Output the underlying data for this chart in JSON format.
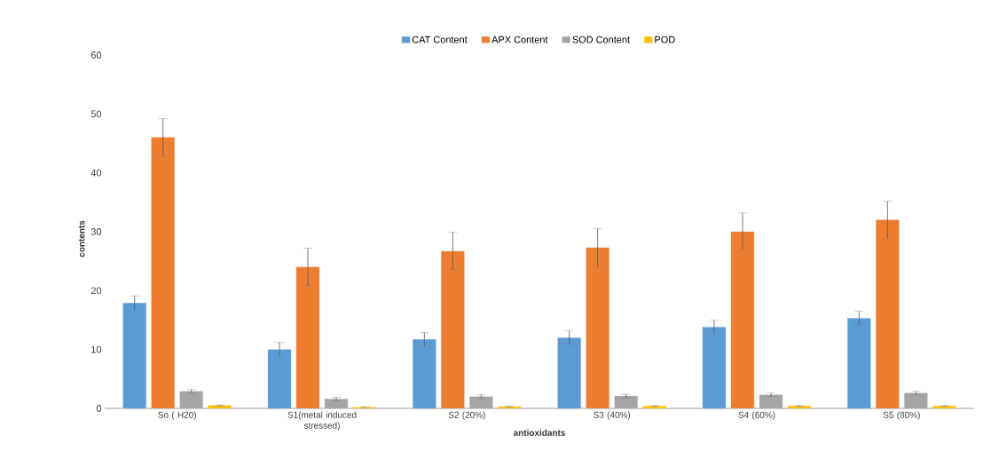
{
  "chart_data": {
    "type": "bar",
    "xlabel": "antioxidants",
    "ylabel": "contents",
    "categories": [
      "So ( H20)",
      "S1(metal induced stressed)",
      "S2 (20%)",
      "S3 (40%)",
      "S4 (60%)",
      "S5 (80%)"
    ],
    "series": [
      {
        "name": "CAT Content",
        "color": "#5b9bd5",
        "values": [
          17.9,
          10,
          11.7,
          12,
          13.8,
          15.3
        ],
        "errors": [
          1.2,
          1.2,
          1.2,
          1.2,
          1.2,
          1.2
        ]
      },
      {
        "name": "APX Content",
        "color": "#ed7d31",
        "values": [
          46,
          24,
          26.7,
          27.3,
          30,
          32
        ],
        "errors": [
          3.2,
          3.2,
          3.2,
          3.2,
          3.2,
          3.2
        ]
      },
      {
        "name": "SOD Content",
        "color": "#a5a5a5",
        "values": [
          2.9,
          1.6,
          2,
          2.1,
          2.3,
          2.6
        ],
        "errors": [
          0.3,
          0.3,
          0.3,
          0.3,
          0.3,
          0.3
        ]
      },
      {
        "name": "POD",
        "color": "#ffc000",
        "values": [
          0.5,
          0.2,
          0.3,
          0.4,
          0.4,
          0.4
        ],
        "errors": [
          0.1,
          0.1,
          0.1,
          0.1,
          0.1,
          0.1
        ]
      }
    ],
    "ylim": [
      0,
      60
    ],
    "yticks": [
      0,
      10,
      20,
      30,
      40,
      50,
      60
    ],
    "grid": false,
    "legend": "top"
  }
}
